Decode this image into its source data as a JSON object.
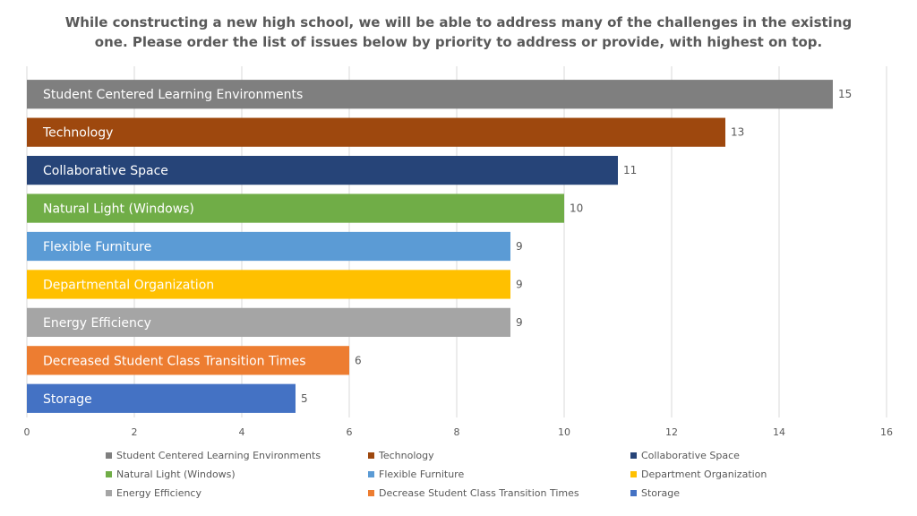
{
  "chart_data": {
    "type": "bar",
    "orientation": "horizontal",
    "title": "While constructing a new high school, we will be able to address many of the challenges in the existing one. Please order the list of issues below by priority to address or provide, with highest on top.",
    "categories": [
      "Student Centered Learning Environments",
      "Technology",
      "Collaborative Space",
      "Natural Light (Windows)",
      "Flexible Furniture",
      "Departmental Organization",
      "Energy Efficiency",
      "Decreased Student Class Transition Times",
      "Storage"
    ],
    "values": [
      15,
      13,
      11,
      10,
      9,
      9,
      9,
      6,
      5
    ],
    "colors": [
      "#7f7f7f",
      "#9e480e",
      "#264478",
      "#70ad47",
      "#5b9bd5",
      "#ffc000",
      "#a5a5a5",
      "#ed7d31",
      "#4472c4"
    ],
    "xlim": [
      0,
      16
    ],
    "xticks": [
      0,
      2,
      4,
      6,
      8,
      10,
      12,
      14,
      16
    ],
    "grid": true,
    "legend_position": "bottom",
    "legend": [
      {
        "label": "Student Centered Learning Environments",
        "color": "#7f7f7f"
      },
      {
        "label": "Technology",
        "color": "#9e480e"
      },
      {
        "label": "Collaborative Space",
        "color": "#264478"
      },
      {
        "label": "Natural Light (Windows)",
        "color": "#70ad47"
      },
      {
        "label": "Flexible Furniture",
        "color": "#5b9bd5"
      },
      {
        "label": "Department Organization",
        "color": "#ffc000"
      },
      {
        "label": "Energy Efficiency",
        "color": "#a5a5a5"
      },
      {
        "label": "Decrease Student Class Transition Times",
        "color": "#ed7d31"
      },
      {
        "label": "Storage",
        "color": "#4472c4"
      }
    ]
  }
}
